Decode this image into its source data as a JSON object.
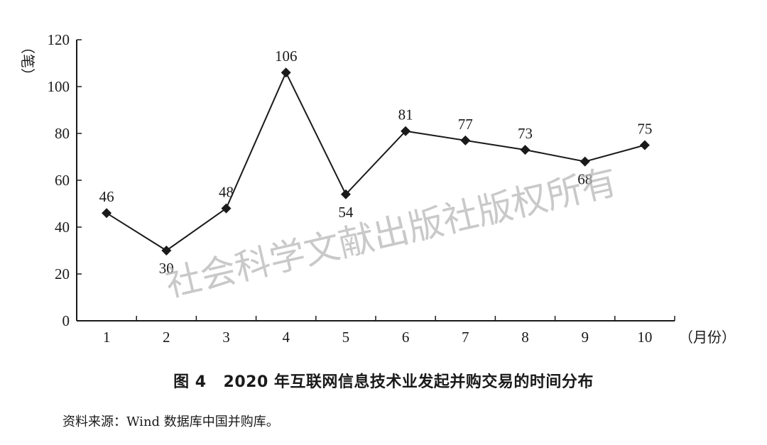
{
  "chart_data": {
    "type": "line",
    "x": [
      1,
      2,
      3,
      4,
      5,
      6,
      7,
      8,
      9,
      10
    ],
    "categories": [
      "1",
      "2",
      "3",
      "4",
      "5",
      "6",
      "7",
      "8",
      "9",
      "10"
    ],
    "values": [
      46,
      30,
      48,
      106,
      54,
      81,
      77,
      73,
      68,
      75
    ],
    "data_labels": [
      "46",
      "30",
      "48",
      "106",
      "54",
      "81",
      "77",
      "73",
      "68",
      "75"
    ],
    "ylim": [
      0,
      120
    ],
    "yticks": [
      0,
      20,
      40,
      60,
      80,
      100,
      120
    ],
    "ylabel": "（笔）",
    "xlabel": "（月份）",
    "marker": "diamond",
    "grid": false,
    "line_color": "#1a1a1a"
  },
  "caption": {
    "figure_no": "图 4",
    "title": "2020 年互联网信息技术业发起并购交易的时间分布"
  },
  "source_note": "资料来源：Wind 数据库中国并购库。",
  "watermark": "社会科学文献出版社版权所有"
}
